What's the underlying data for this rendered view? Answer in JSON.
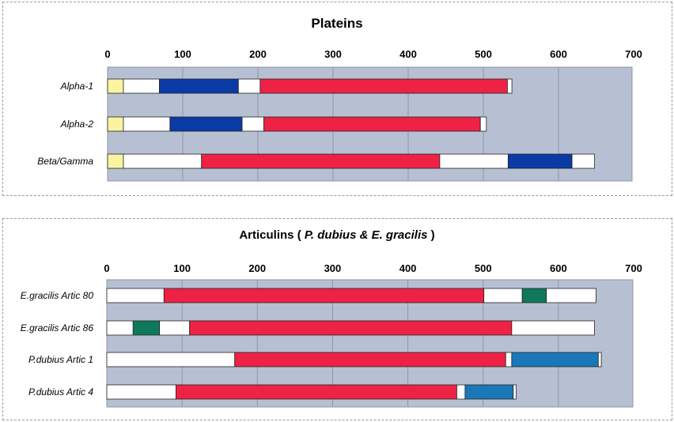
{
  "chart_data": [
    {
      "type": "stacked-bar-horizontal",
      "title": "Plateins",
      "xlim": [
        0,
        700
      ],
      "ticks": [
        "0",
        "100",
        "200",
        "300",
        "400",
        "500",
        "600",
        "700"
      ],
      "rows": [
        {
          "label": "Alpha-1",
          "segments": [
            {
              "start": 0,
              "end": 21,
              "color": "#faf4a0"
            },
            {
              "start": 21,
              "end": 69,
              "color": "#ffffff"
            },
            {
              "start": 69,
              "end": 174,
              "color": "#0a3aa6"
            },
            {
              "start": 174,
              "end": 203,
              "color": "#ffffff"
            },
            {
              "start": 203,
              "end": 532,
              "color": "#ee2244"
            },
            {
              "start": 532,
              "end": 538,
              "color": "#ffffff"
            }
          ]
        },
        {
          "label": "Alpha-2",
          "segments": [
            {
              "start": 0,
              "end": 21,
              "color": "#faf4a0"
            },
            {
              "start": 21,
              "end": 83,
              "color": "#ffffff"
            },
            {
              "start": 83,
              "end": 179,
              "color": "#0a3aa6"
            },
            {
              "start": 179,
              "end": 208,
              "color": "#ffffff"
            },
            {
              "start": 208,
              "end": 496,
              "color": "#ee2244"
            },
            {
              "start": 496,
              "end": 504,
              "color": "#ffffff"
            }
          ]
        },
        {
          "label": "Beta/Gamma",
          "segments": [
            {
              "start": 0,
              "end": 21,
              "color": "#faf4a0"
            },
            {
              "start": 21,
              "end": 125,
              "color": "#ffffff"
            },
            {
              "start": 125,
              "end": 442,
              "color": "#ee2244"
            },
            {
              "start": 442,
              "end": 533,
              "color": "#ffffff"
            },
            {
              "start": 533,
              "end": 618,
              "color": "#0a3aa6"
            },
            {
              "start": 618,
              "end": 648,
              "color": "#ffffff"
            }
          ]
        }
      ]
    },
    {
      "type": "stacked-bar-horizontal",
      "title_parts": [
        {
          "text": "Articulins ( ",
          "italic": false
        },
        {
          "text": "P. dubius & E. gracilis",
          "italic": true
        },
        {
          "text": " )",
          "italic": false
        }
      ],
      "xlim": [
        0,
        700
      ],
      "ticks": [
        "0",
        "100",
        "200",
        "300",
        "400",
        "500",
        "600",
        "700"
      ],
      "rows": [
        {
          "label": "E.gracilis Artic 80",
          "segments": [
            {
              "start": 0,
              "end": 76,
              "color": "#ffffff"
            },
            {
              "start": 76,
              "end": 501,
              "color": "#ee2244"
            },
            {
              "start": 501,
              "end": 552,
              "color": "#ffffff"
            },
            {
              "start": 552,
              "end": 584,
              "color": "#0e7a5a"
            },
            {
              "start": 584,
              "end": 650,
              "color": "#ffffff"
            }
          ]
        },
        {
          "label": "E.gracilis Artic 86",
          "segments": [
            {
              "start": 0,
              "end": 35,
              "color": "#ffffff"
            },
            {
              "start": 35,
              "end": 70,
              "color": "#0e7a5a"
            },
            {
              "start": 70,
              "end": 110,
              "color": "#ffffff"
            },
            {
              "start": 110,
              "end": 538,
              "color": "#ee2244"
            },
            {
              "start": 538,
              "end": 648,
              "color": "#ffffff"
            }
          ]
        },
        {
          "label": "P.dubius Artic 1",
          "segments": [
            {
              "start": 0,
              "end": 170,
              "color": "#ffffff"
            },
            {
              "start": 170,
              "end": 530,
              "color": "#ee2244"
            },
            {
              "start": 530,
              "end": 538,
              "color": "#ffffff"
            },
            {
              "start": 538,
              "end": 653,
              "color": "#1a78b8"
            },
            {
              "start": 653,
              "end": 657,
              "color": "#ffffff"
            }
          ]
        },
        {
          "label": "P.dubius Artic 4",
          "segments": [
            {
              "start": 0,
              "end": 92,
              "color": "#ffffff"
            },
            {
              "start": 92,
              "end": 465,
              "color": "#ee2244"
            },
            {
              "start": 465,
              "end": 476,
              "color": "#ffffff"
            },
            {
              "start": 476,
              "end": 540,
              "color": "#1a78b8"
            },
            {
              "start": 540,
              "end": 544,
              "color": "#ffffff"
            }
          ]
        }
      ]
    }
  ],
  "colors": {
    "plot_background": "#b7c0d3",
    "gridline": "#8e96aa",
    "outline": "#222222"
  }
}
